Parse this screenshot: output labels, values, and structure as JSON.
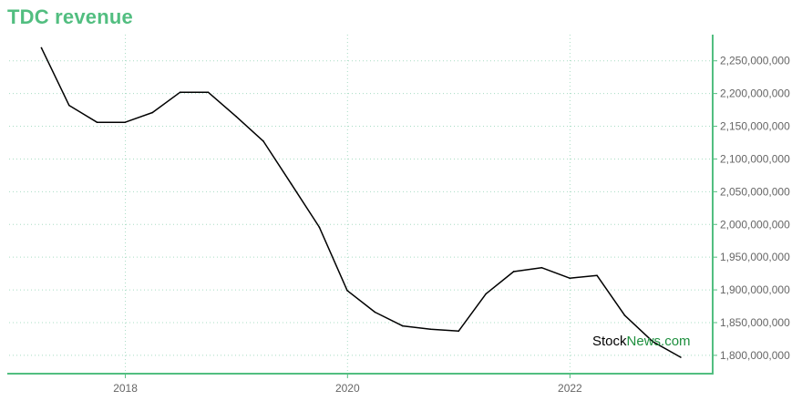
{
  "title": "TDC revenue",
  "watermark": {
    "part1": "Stock",
    "part2": "News.com",
    "color1": "#000000",
    "color2": "#1e8f3e"
  },
  "colors": {
    "accent": "#52be80",
    "grid": "#a8dcc4",
    "line": "#000000",
    "tick_text": "#666666"
  },
  "chart_data": {
    "type": "line",
    "title": "TDC revenue",
    "xlabel": "",
    "ylabel": "",
    "x_axis": "time",
    "x_ticks": [
      "2018",
      "2020",
      "2022"
    ],
    "y_ticks": [
      "1,800,000,000",
      "1,850,000,000",
      "1,900,000,000",
      "1,950,000,000",
      "2,000,000,000",
      "2,050,000,000",
      "2,100,000,000",
      "2,150,000,000",
      "2,200,000,000",
      "2,250,000,000"
    ],
    "xlim": [
      "2016-12-15",
      "2023-04-15"
    ],
    "ylim": [
      1772000000,
      2290000000
    ],
    "y_axis_side": "right",
    "grid": true,
    "legend": "none",
    "series": [
      {
        "x": [
          "2017-03-31",
          "2017-06-30",
          "2017-09-30",
          "2017-12-31",
          "2018-03-31",
          "2018-06-30",
          "2018-09-30",
          "2018-12-31",
          "2019-03-31",
          "2019-06-30",
          "2019-09-30",
          "2019-12-31",
          "2020-03-31",
          "2020-06-30",
          "2020-09-30",
          "2020-12-31",
          "2021-03-31",
          "2021-06-30",
          "2021-09-30",
          "2021-12-31",
          "2022-03-31",
          "2022-06-30",
          "2022-09-30",
          "2022-12-31"
        ],
        "values": [
          2270000000,
          2182000000,
          2156000000,
          2156000000,
          2171000000,
          2202000000,
          2202000000,
          2165000000,
          2127000000,
          2062000000,
          1996000000,
          1899000000,
          1866000000,
          1845000000,
          1840000000,
          1837000000,
          1894000000,
          1928000000,
          1934000000,
          1918000000,
          1922000000,
          1861000000,
          1821000000,
          1797000000
        ]
      }
    ]
  }
}
